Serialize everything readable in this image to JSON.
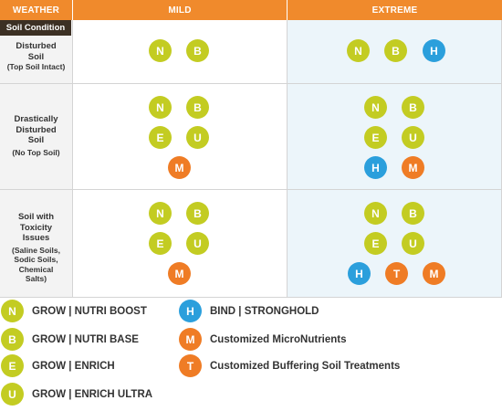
{
  "header": {
    "weather": "WEATHER",
    "mild": "MILD",
    "extreme": "EXTREME"
  },
  "soil_condition_label": "Soil Condition",
  "rows": [
    {
      "title": "Disturbed Soil",
      "subtitle": "(Top Soil Intact)",
      "mild": [
        "N",
        "B"
      ],
      "extreme": [
        "N",
        "B",
        "H"
      ]
    },
    {
      "title": "Drastically Disturbed Soil",
      "subtitle": "(No Top Soil)",
      "mild": [
        "N",
        "B",
        "E",
        "U",
        "M"
      ],
      "extreme": [
        "N",
        "B",
        "E",
        "U",
        "H",
        "M"
      ]
    },
    {
      "title": "Soil with Toxicity Issues",
      "subtitle": "(Saline Soils, Sodic Soils, Chemical Salts)",
      "mild": [
        "N",
        "B",
        "E",
        "U",
        "M"
      ],
      "extreme": [
        "N",
        "B",
        "E",
        "U",
        "H",
        "T",
        "M"
      ]
    }
  ],
  "legend": [
    {
      "code": "N",
      "label": "GROW | NUTRI BOOST",
      "color": "#c3cc22"
    },
    {
      "code": "B",
      "label": "GROW | NUTRI BASE",
      "color": "#c3cc22"
    },
    {
      "code": "E",
      "label": "GROW | ENRICH",
      "color": "#c3cc22"
    },
    {
      "code": "U",
      "label": "GROW | ENRICH ULTRA",
      "color": "#c3cc22"
    },
    {
      "code": "H",
      "label": "BIND | STRONGHOLD",
      "color": "#2b9fdc"
    },
    {
      "code": "M",
      "label": "Customized MicroNutrients",
      "color": "#ef7c25"
    },
    {
      "code": "T",
      "label": "Customized Buffering Soil Treatments",
      "color": "#ef7c25"
    }
  ],
  "colors": {
    "header_orange": "#f08a2c",
    "soil_tag_dark": "#3c3024",
    "lime": "#c3cc22",
    "blue": "#2b9fdc",
    "orange": "#ef7c25",
    "extreme_bg": "#ecf5fa",
    "label_bg": "#f3f3f3"
  }
}
